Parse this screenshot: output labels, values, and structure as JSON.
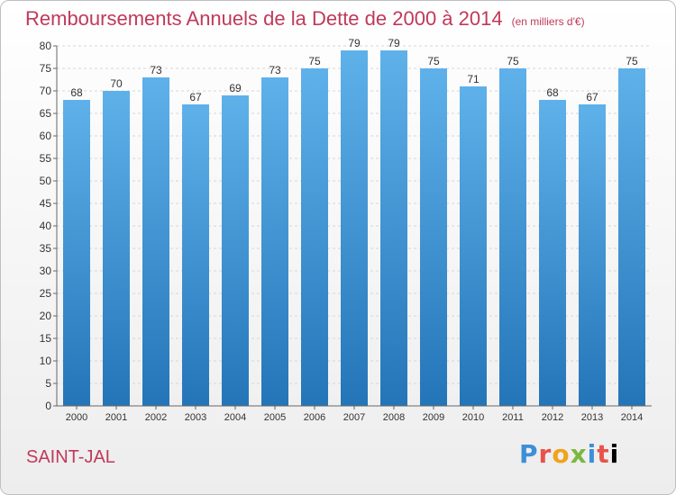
{
  "header": {
    "title": "Remboursements Annuels de la Dette de 2000 à 2014",
    "unit": "(en milliers d'€)"
  },
  "footer": {
    "commune": "SAINT-JAL",
    "logo": "Proxiti"
  },
  "colors": {
    "title": "#c0395a",
    "bar_top": "#5fb1ea",
    "bar_bottom": "#2475b8"
  },
  "chart_data": {
    "type": "bar",
    "title": "Remboursements Annuels de la Dette de 2000 à 2014",
    "subtitle": "(en milliers d'€)",
    "xlabel": "",
    "ylabel": "",
    "categories": [
      "2000",
      "2001",
      "2002",
      "2003",
      "2004",
      "2005",
      "2006",
      "2007",
      "2008",
      "2009",
      "2010",
      "2011",
      "2012",
      "2013",
      "2014"
    ],
    "values": [
      68,
      70,
      73,
      67,
      69,
      73,
      75,
      79,
      79,
      75,
      71,
      75,
      68,
      67,
      75
    ],
    "ylim": [
      0,
      80
    ],
    "yticks": [
      0,
      5,
      10,
      15,
      20,
      25,
      30,
      35,
      40,
      45,
      50,
      55,
      60,
      65,
      70,
      75,
      80
    ],
    "grid": true,
    "data_labels": true
  }
}
